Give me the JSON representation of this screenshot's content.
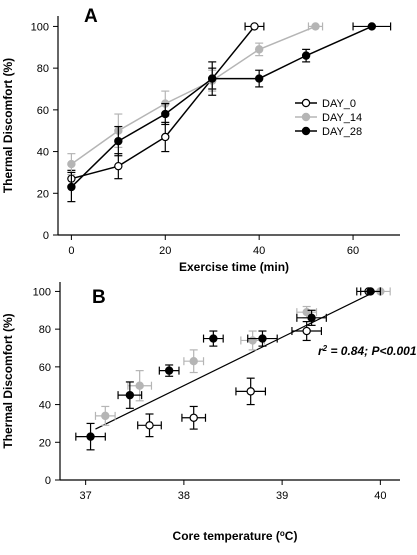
{
  "chart_data": [
    {
      "panel_label": "A",
      "type": "line",
      "xlabel": "Exercise time (min)",
      "ylabel": "Thermal Discomfort (%)",
      "xlim": [
        -2,
        70
      ],
      "ylim": [
        0,
        105
      ],
      "xticks": [
        0,
        20,
        40,
        60
      ],
      "yticks": [
        0,
        20,
        40,
        60,
        80,
        100
      ],
      "legend_position": "center-right",
      "grid": false,
      "series": [
        {
          "name": "DAY_0",
          "marker": "open-circle",
          "color": "#000000",
          "points": [
            {
              "x": 0,
              "y": 27,
              "yerr": 4
            },
            {
              "x": 10,
              "y": 33,
              "yerr": 6
            },
            {
              "x": 20,
              "y": 47,
              "yerr": 7
            },
            {
              "x": 30,
              "y": 75,
              "yerr": 5
            },
            {
              "x": 39,
              "y": 100,
              "xerr": 2
            }
          ]
        },
        {
          "name": "DAY_14",
          "marker": "filled-circle",
          "color": "#b5b5b5",
          "points": [
            {
              "x": 0,
              "y": 34,
              "yerr": 5
            },
            {
              "x": 10,
              "y": 50,
              "yerr": 8
            },
            {
              "x": 20,
              "y": 63,
              "yerr": 6
            },
            {
              "x": 30,
              "y": 74,
              "yerr": 5
            },
            {
              "x": 40,
              "y": 89,
              "yerr": 3
            },
            {
              "x": 52,
              "y": 100,
              "xerr": 1.5
            }
          ]
        },
        {
          "name": "DAY_28",
          "marker": "filled-circle",
          "color": "#000000",
          "points": [
            {
              "x": 0,
              "y": 23,
              "yerr": 7
            },
            {
              "x": 10,
              "y": 45,
              "yerr": 7
            },
            {
              "x": 20,
              "y": 58,
              "yerr": 5
            },
            {
              "x": 30,
              "y": 75,
              "yerr": 8
            },
            {
              "x": 40,
              "y": 75,
              "yerr": 4
            },
            {
              "x": 50,
              "y": 86,
              "yerr": 3
            },
            {
              "x": 64,
              "y": 100,
              "xerr": 4
            }
          ]
        }
      ]
    },
    {
      "panel_label": "B",
      "type": "scatter",
      "xlabel": "Core temperature (",
      "xlabel_unit_sup": "o",
      "xlabel_unit_tail": "C)",
      "ylabel": "Thermal Discomfort (%)",
      "xlim": [
        36.8,
        40.2
      ],
      "ylim": [
        0,
        105
      ],
      "xticks": [
        37,
        38,
        39,
        40
      ],
      "yticks": [
        0,
        20,
        40,
        60,
        80,
        100
      ],
      "grid": false,
      "annotation": {
        "r": "r",
        "sup": "2",
        "text": " = 0.84; P<0.001"
      },
      "regression_line": {
        "x": [
          37.1,
          39.95
        ],
        "y": [
          27,
          100
        ]
      },
      "series": [
        {
          "name": "DAY_0",
          "marker": "open-circle",
          "color": "#000000",
          "points": [
            {
              "x": 37.65,
              "y": 29,
              "xerr": 0.12,
              "yerr": 6
            },
            {
              "x": 38.1,
              "y": 33,
              "xerr": 0.12,
              "yerr": 6
            },
            {
              "x": 38.68,
              "y": 47,
              "xerr": 0.15,
              "yerr": 7
            },
            {
              "x": 39.25,
              "y": 79,
              "xerr": 0.15,
              "yerr": 5
            },
            {
              "x": 39.88,
              "y": 100,
              "xerr": 0.12
            }
          ]
        },
        {
          "name": "DAY_14",
          "marker": "filled-circle",
          "color": "#b5b5b5",
          "points": [
            {
              "x": 37.2,
              "y": 34,
              "xerr": 0.1,
              "yerr": 5
            },
            {
              "x": 37.55,
              "y": 50,
              "xerr": 0.12,
              "yerr": 8
            },
            {
              "x": 38.1,
              "y": 63,
              "xerr": 0.1,
              "yerr": 6
            },
            {
              "x": 38.7,
              "y": 74,
              "xerr": 0.12,
              "yerr": 5
            },
            {
              "x": 39.25,
              "y": 89,
              "xerr": 0.1,
              "yerr": 3
            },
            {
              "x": 40.0,
              "y": 100,
              "xerr": 0.1
            }
          ]
        },
        {
          "name": "DAY_28",
          "marker": "filled-circle",
          "color": "#000000",
          "points": [
            {
              "x": 37.05,
              "y": 23,
              "xerr": 0.15,
              "yerr": 7
            },
            {
              "x": 37.45,
              "y": 45,
              "xerr": 0.12,
              "yerr": 7
            },
            {
              "x": 37.85,
              "y": 58,
              "xerr": 0.1,
              "yerr": 3
            },
            {
              "x": 38.3,
              "y": 75,
              "xerr": 0.1,
              "yerr": 4
            },
            {
              "x": 38.8,
              "y": 75,
              "xerr": 0.15,
              "yerr": 4
            },
            {
              "x": 39.3,
              "y": 86,
              "xerr": 0.15,
              "yerr": 4
            },
            {
              "x": 39.9,
              "y": 100,
              "xerr": 0.1
            }
          ]
        }
      ]
    }
  ]
}
